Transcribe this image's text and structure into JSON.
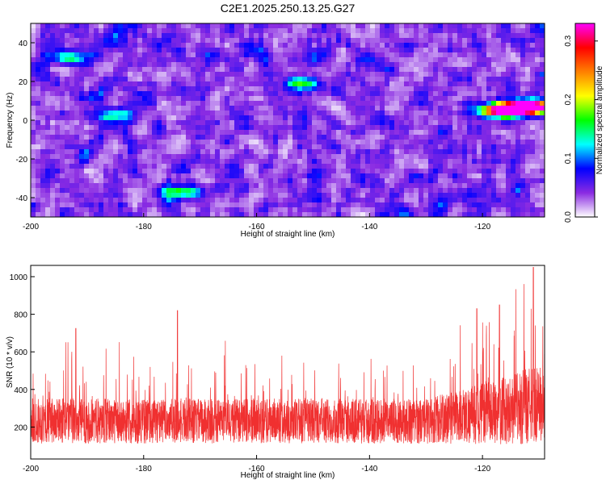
{
  "title": "C2E1.2025.250.13.25.G27",
  "chart_data": [
    {
      "type": "heatmap",
      "xlabel": "Height of straight line (km)",
      "ylabel": "Frequency (Hz)",
      "xlim": [
        -200,
        -109
      ],
      "ylim": [
        -50,
        50
      ],
      "x_ticks": [
        -200,
        -180,
        -160,
        -140,
        -120
      ],
      "y_ticks": [
        -40,
        -20,
        0,
        20,
        40
      ],
      "colorbar": {
        "label": "Normalized spectral amplitude",
        "range": [
          0,
          0.33
        ],
        "ticks": [
          0.0,
          0.1,
          0.2,
          0.3
        ],
        "tick_labels": [
          "0.0",
          "0.1",
          "0.2",
          "0.3"
        ],
        "colormap": [
          "#ffffff",
          "#8a2be2",
          "#0000ff",
          "#00ffff",
          "#00ff00",
          "#ffff00",
          "#ff8000",
          "#ff0000",
          "#ff00ff"
        ]
      },
      "background_level": 0.05,
      "hotspots": [
        {
          "x": -114,
          "y": 6,
          "value": 0.3
        },
        {
          "x": -117,
          "y": 5,
          "value": 0.26
        },
        {
          "x": -111,
          "y": 7,
          "value": 0.28
        },
        {
          "x": -152,
          "y": 19,
          "value": 0.14
        },
        {
          "x": -193,
          "y": 32,
          "value": 0.12
        },
        {
          "x": -174,
          "y": -37,
          "value": 0.12
        },
        {
          "x": -185,
          "y": 3,
          "value": 0.1
        }
      ]
    },
    {
      "type": "line",
      "xlabel": "Height of straight line (km)",
      "ylabel": "SNR (10 * v/v)",
      "xlim": [
        -200,
        -109
      ],
      "ylim": [
        30,
        1060
      ],
      "x_ticks": [
        -200,
        -180,
        -160,
        -140,
        -120
      ],
      "y_ticks": [
        200,
        400,
        600,
        800,
        1000
      ],
      "color": "#f03030",
      "baseline_mean": 220,
      "noise_spread": 150,
      "rise_start_x": -130,
      "rise_end_value": 300,
      "peaks": [
        {
          "x": -192,
          "y": 725
        },
        {
          "x": -174,
          "y": 820
        },
        {
          "x": -121,
          "y": 830
        },
        {
          "x": -117,
          "y": 850
        },
        {
          "x": -111,
          "y": 1050
        }
      ]
    }
  ]
}
